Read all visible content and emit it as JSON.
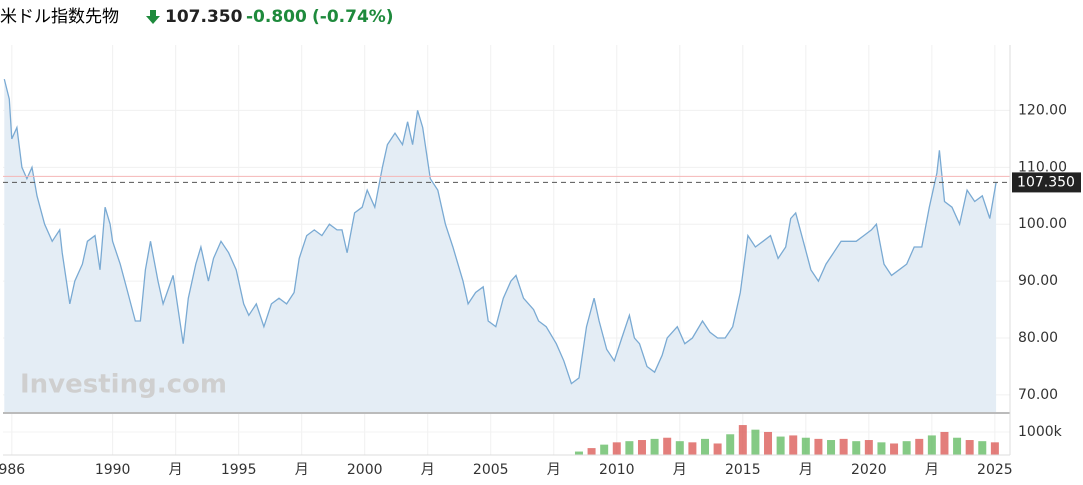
{
  "chart_data": {
    "type": "area",
    "title": "米ドル指数先物",
    "price": "107.350",
    "change": "-0.800",
    "change_pct": "(-0.74%)",
    "watermark": "Investing.com",
    "last_value": 107.35,
    "last_label": "107.350",
    "color": "#7aaad3",
    "fill": "#e4edf5",
    "grid": true,
    "xlim": [
      1985.65,
      2025.6
    ],
    "ylim": [
      67,
      131.5
    ],
    "yticks": [
      {
        "value": 70,
        "label": "70.00"
      },
      {
        "value": 80,
        "label": "80.00"
      },
      {
        "value": 90,
        "label": "90.00"
      },
      {
        "value": 100,
        "label": "100.00"
      },
      {
        "value": 110,
        "label": "110.00"
      },
      {
        "value": 120,
        "label": "120.00"
      }
    ],
    "xticks": [
      {
        "value": 1986,
        "label": "986"
      },
      1990,
      {
        "value": 1992.5,
        "label": "月"
      },
      1995,
      {
        "value": 1997.5,
        "label": "月"
      },
      2000,
      {
        "value": 2002.5,
        "label": "月"
      },
      2005,
      {
        "value": 2007.5,
        "label": "月"
      },
      2010,
      {
        "value": 2012.5,
        "label": "月"
      },
      2015,
      {
        "value": 2017.5,
        "label": "月"
      },
      2020,
      {
        "value": 2022.5,
        "label": "月"
      },
      2025
    ],
    "x": [
      1985.7,
      1985.9,
      1986.0,
      1986.2,
      1986.4,
      1986.6,
      1986.8,
      1987.0,
      1987.3,
      1987.6,
      1987.9,
      1988.0,
      1988.3,
      1988.5,
      1988.8,
      1989.0,
      1989.3,
      1989.5,
      1989.7,
      1989.9,
      1990.0,
      1990.3,
      1990.6,
      1990.9,
      1991.1,
      1991.3,
      1991.5,
      1991.8,
      1992.0,
      1992.4,
      1992.7,
      1992.8,
      1993.0,
      1993.3,
      1993.5,
      1993.8,
      1994.0,
      1994.3,
      1994.6,
      1994.9,
      1995.2,
      1995.4,
      1995.7,
      1996.0,
      1996.3,
      1996.6,
      1996.9,
      1997.2,
      1997.4,
      1997.7,
      1998.0,
      1998.3,
      1998.6,
      1998.9,
      1999.1,
      1999.3,
      1999.6,
      1999.9,
      2000.1,
      2000.4,
      2000.7,
      2000.9,
      2001.2,
      2001.5,
      2001.7,
      2001.9,
      2002.1,
      2002.3,
      2002.6,
      2002.9,
      2003.2,
      2003.5,
      2003.9,
      2004.1,
      2004.4,
      2004.7,
      2004.9,
      2005.2,
      2005.5,
      2005.8,
      2006.0,
      2006.3,
      2006.7,
      2006.9,
      2007.2,
      2007.6,
      2007.9,
      2008.2,
      2008.5,
      2008.8,
      2009.1,
      2009.3,
      2009.6,
      2009.9,
      2010.2,
      2010.5,
      2010.7,
      2010.9,
      2011.2,
      2011.5,
      2011.8,
      2012.0,
      2012.4,
      2012.7,
      2013.0,
      2013.4,
      2013.7,
      2014.0,
      2014.3,
      2014.6,
      2014.9,
      2015.2,
      2015.5,
      2015.8,
      2016.1,
      2016.4,
      2016.7,
      2016.9,
      2017.1,
      2017.4,
      2017.7,
      2018.0,
      2018.3,
      2018.6,
      2018.9,
      2019.2,
      2019.5,
      2019.8,
      2020.1,
      2020.3,
      2020.6,
      2020.9,
      2021.2,
      2021.5,
      2021.8,
      2022.1,
      2022.4,
      2022.7,
      2022.8,
      2023.0,
      2023.3,
      2023.6,
      2023.9,
      2024.2,
      2024.5,
      2024.8,
      2025.05
    ],
    "values": [
      125.5,
      122,
      115,
      117,
      110,
      108,
      110,
      105,
      100,
      97,
      99,
      95,
      86,
      90,
      93,
      97,
      98,
      92,
      103,
      100,
      97,
      93,
      88,
      83,
      83,
      92,
      97,
      90,
      86,
      91,
      82,
      79,
      87,
      93,
      96,
      90,
      94,
      97,
      95,
      92,
      86,
      84,
      86,
      82,
      86,
      87,
      86,
      88,
      94,
      98,
      99,
      98,
      100,
      99,
      99,
      95,
      102,
      103,
      106,
      103,
      110,
      114,
      116,
      114,
      118,
      114,
      120,
      117,
      108,
      106,
      100,
      96,
      90,
      86,
      88,
      89,
      83,
      82,
      87,
      90,
      91,
      87,
      85,
      83,
      82,
      79,
      76,
      72,
      73,
      82,
      87,
      83,
      78,
      76,
      80,
      84,
      80,
      79,
      75,
      74,
      77,
      80,
      82,
      79,
      80,
      83,
      81,
      80,
      80,
      82,
      88,
      98,
      96,
      97,
      98,
      94,
      96,
      101,
      102,
      97,
      92,
      90,
      93,
      95,
      97,
      97,
      97,
      98,
      99,
      100,
      93,
      91,
      92,
      93,
      96,
      96,
      103,
      109,
      113,
      104,
      103,
      100,
      106,
      104,
      105,
      101,
      107.35
    ],
    "volume": {
      "x": [
        2008.5,
        2009.0,
        2009.5,
        2010.0,
        2010.5,
        2011.0,
        2011.5,
        2012.0,
        2012.5,
        2013.0,
        2013.5,
        2014.0,
        2014.5,
        2015.0,
        2015.5,
        2016.0,
        2016.5,
        2017.0,
        2017.5,
        2018.0,
        2018.5,
        2019.0,
        2019.5,
        2020.0,
        2020.5,
        2021.0,
        2021.5,
        2022.0,
        2022.5,
        2023.0,
        2023.5,
        2024.0,
        2024.5,
        2025.0
      ],
      "values": [
        150000,
        300000,
        450000,
        550000,
        600000,
        650000,
        700000,
        750000,
        600000,
        550000,
        700000,
        500000,
        900000,
        1300000,
        1100000,
        1000000,
        800000,
        850000,
        750000,
        700000,
        650000,
        700000,
        600000,
        650000,
        550000,
        500000,
        600000,
        700000,
        850000,
        1000000,
        750000,
        650000,
        600000,
        550000
      ],
      "vlim": [
        0,
        1780000
      ],
      "vticks": [
        {
          "value": 1000000,
          "label": "1000k"
        }
      ],
      "up_color": "#5cb85c",
      "down_color": "#d9534f"
    }
  }
}
